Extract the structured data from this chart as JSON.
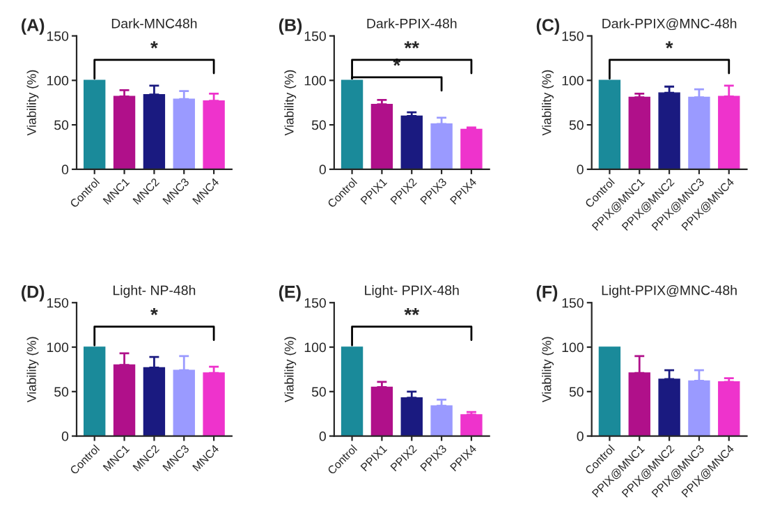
{
  "chart_data": [
    {
      "type": "bar",
      "title": "Dark-MNC48h",
      "ylabel": "Viability (%)",
      "categories": [
        "Control",
        "MNC1",
        "MNC2",
        "MNC3",
        "MNC4"
      ],
      "values": [
        100,
        82,
        84,
        79,
        77
      ],
      "errors": [
        null,
        [
          82,
          89
        ],
        [
          84,
          94
        ],
        [
          79,
          88
        ],
        [
          77,
          85
        ]
      ],
      "colors": [
        "#1a8a9a",
        "#b0108a",
        "#1a1a80",
        "#9a9aff",
        "#ee33cc"
      ],
      "ylim": [
        0,
        150
      ],
      "yticks": [
        0,
        50,
        100,
        150
      ],
      "annotations": [
        "(A)",
        "*"
      ]
    },
    {
      "type": "bar",
      "title": "Dark-PPIX-48h",
      "ylabel": "Viability (%)",
      "categories": [
        "Control",
        "PPIX1",
        "PPIX2",
        "PPIX3",
        "PPIX4"
      ],
      "values": [
        100,
        73,
        60,
        51,
        45
      ],
      "errors": [
        null,
        [
          73,
          78
        ],
        [
          60,
          64
        ],
        [
          51,
          58
        ],
        [
          45,
          47
        ]
      ],
      "colors": [
        "#1a8a9a",
        "#b0108a",
        "#1a1a80",
        "#9a9aff",
        "#ee33cc"
      ],
      "ylim": [
        0,
        150
      ],
      "yticks": [
        0,
        50,
        100,
        150
      ],
      "annotations": [
        "(B)",
        "*",
        "**"
      ]
    },
    {
      "type": "bar",
      "title": "Dark-PPIX@MNC-48h",
      "ylabel": "Viability (%)",
      "categories": [
        "Control",
        "PPIX@MNC1",
        "PPIX@MNC2",
        "PPIX@MNC3",
        "PPIX@MNC4"
      ],
      "values": [
        100,
        81,
        86,
        81,
        82
      ],
      "errors": [
        null,
        [
          81,
          85
        ],
        [
          86,
          93
        ],
        [
          81,
          90
        ],
        [
          82,
          94
        ]
      ],
      "colors": [
        "#1a8a9a",
        "#b0108a",
        "#1a1a80",
        "#9a9aff",
        "#ee33cc"
      ],
      "ylim": [
        0,
        150
      ],
      "yticks": [
        0,
        50,
        100,
        150
      ],
      "annotations": [
        "(C)",
        "*"
      ]
    },
    {
      "type": "bar",
      "title": "Light- NP-48h",
      "ylabel": "Viability (%)",
      "categories": [
        "Control",
        "MNC1",
        "MNC2",
        "MNC3",
        "MNC4"
      ],
      "values": [
        100,
        80,
        77,
        74,
        71
      ],
      "errors": [
        null,
        [
          80,
          93
        ],
        [
          77,
          89
        ],
        [
          74,
          90
        ],
        [
          71,
          78
        ]
      ],
      "colors": [
        "#1a8a9a",
        "#b0108a",
        "#1a1a80",
        "#9a9aff",
        "#ee33cc"
      ],
      "ylim": [
        0,
        150
      ],
      "yticks": [
        0,
        50,
        100,
        150
      ],
      "annotations": [
        "(D)",
        "*"
      ]
    },
    {
      "type": "bar",
      "title": "Light- PPIX-48h",
      "ylabel": "Viability (%)",
      "categories": [
        "Control",
        "PPIX1",
        "PPIX2",
        "PPIX3",
        "PPIX4"
      ],
      "values": [
        100,
        55,
        43,
        34,
        24
      ],
      "errors": [
        null,
        [
          55,
          61
        ],
        [
          43,
          50
        ],
        [
          34,
          41
        ],
        [
          24,
          27
        ]
      ],
      "colors": [
        "#1a8a9a",
        "#b0108a",
        "#1a1a80",
        "#9a9aff",
        "#ee33cc"
      ],
      "ylim": [
        0,
        150
      ],
      "yticks": [
        0,
        50,
        100,
        150
      ],
      "annotations": [
        "(E)",
        "**"
      ]
    },
    {
      "type": "bar",
      "title": "Light-PPIX@MNC-48h",
      "ylabel": "Viability (%)",
      "categories": [
        "Control",
        "PPIX@MNC1",
        "PPIX@MNC2",
        "PPIX@MNC3",
        "PPIX@MNC4"
      ],
      "values": [
        100,
        71,
        64,
        62,
        61
      ],
      "errors": [
        null,
        [
          71,
          90
        ],
        [
          64,
          74
        ],
        [
          62,
          74
        ],
        [
          61,
          65
        ]
      ],
      "colors": [
        "#1a8a9a",
        "#b0108a",
        "#1a1a80",
        "#9a9aff",
        "#ee33cc"
      ],
      "ylim": [
        0,
        150
      ],
      "yticks": [
        0,
        50,
        100,
        150
      ],
      "annotations": [
        "(F)"
      ]
    }
  ]
}
